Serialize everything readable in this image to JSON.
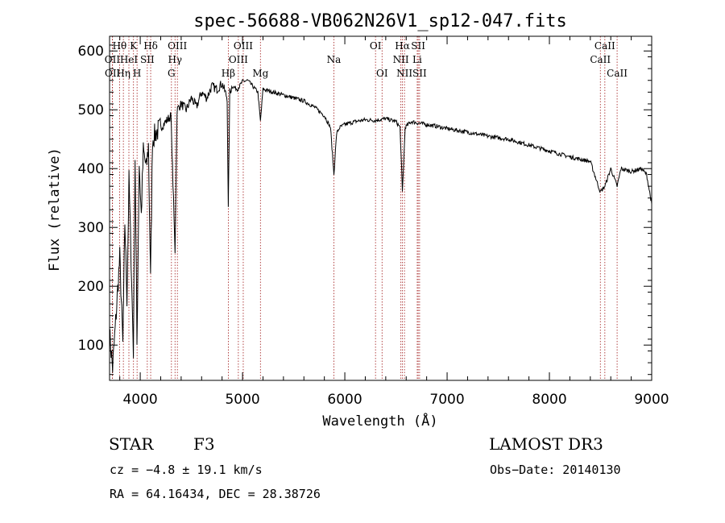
{
  "chart_data": {
    "type": "line",
    "title": "spec-56688-VB062N26V1_sp12-047.fits",
    "xlabel": "Wavelength (Å)",
    "ylabel": "Flux (relative)",
    "xlim": [
      3700,
      9000
    ],
    "ylim": [
      40,
      625
    ],
    "xticks": [
      4000,
      5000,
      6000,
      7000,
      8000,
      9000
    ],
    "yticks": [
      100,
      200,
      300,
      400,
      500,
      600
    ],
    "series": [
      {
        "name": "flux",
        "x": [
          3700,
          3730,
          3760,
          3800,
          3830,
          3850,
          3870,
          3890,
          3910,
          3933,
          3950,
          3968,
          3990,
          4010,
          4030,
          4060,
          4080,
          4101,
          4120,
          4150,
          4200,
          4250,
          4300,
          4340,
          4360,
          4400,
          4450,
          4500,
          4550,
          4600,
          4650,
          4700,
          4750,
          4800,
          4850,
          4861,
          4875,
          4900,
          4950,
          5000,
          5050,
          5100,
          5150,
          5175,
          5200,
          5300,
          5400,
          5500,
          5600,
          5700,
          5800,
          5860,
          5893,
          5920,
          5950,
          6000,
          6100,
          6200,
          6300,
          6400,
          6500,
          6540,
          6563,
          6590,
          6650,
          6700,
          6800,
          6900,
          7000,
          7200,
          7400,
          7600,
          7800,
          8000,
          8200,
          8400,
          8498,
          8542,
          8600,
          8662,
          8700,
          8800,
          8900,
          8950,
          9000
        ],
        "values": [
          120,
          60,
          140,
          250,
          100,
          310,
          180,
          380,
          250,
          90,
          420,
          100,
          410,
          320,
          430,
          400,
          440,
          210,
          450,
          460,
          470,
          480,
          490,
          260,
          500,
          510,
          500,
          520,
          505,
          530,
          520,
          540,
          535,
          545,
          520,
          330,
          530,
          540,
          535,
          548,
          550,
          540,
          530,
          480,
          535,
          530,
          525,
          520,
          515,
          505,
          490,
          470,
          390,
          460,
          470,
          475,
          480,
          483,
          482,
          485,
          480,
          470,
          360,
          470,
          480,
          478,
          475,
          472,
          468,
          462,
          455,
          450,
          440,
          430,
          420,
          412,
          360,
          370,
          400,
          370,
          400,
          395,
          400,
          390,
          340
        ]
      }
    ],
    "lines": [
      {
        "label": "Hθ",
        "x": 3798,
        "row": 1
      },
      {
        "label": "OII",
        "x": 3727,
        "row": 2
      },
      {
        "label": "OII",
        "x": 3729,
        "row": 3
      },
      {
        "label": "K",
        "x": 3934,
        "row": 1
      },
      {
        "label": "HeI",
        "x": 3889,
        "row": 2
      },
      {
        "label": "Hη",
        "x": 3835,
        "row": 3
      },
      {
        "label": "H",
        "x": 3969,
        "row": 3
      },
      {
        "label": "SII",
        "x": 4069,
        "row": 2
      },
      {
        "label": "Hδ",
        "x": 4102,
        "row": 1
      },
      {
        "label": "OIII",
        "x": 4363,
        "row": 1
      },
      {
        "label": "Hγ",
        "x": 4340,
        "row": 2
      },
      {
        "label": "G",
        "x": 4305,
        "row": 3
      },
      {
        "label": "Hβ",
        "x": 4861,
        "row": 3
      },
      {
        "label": "OIII",
        "x": 5007,
        "row": 1
      },
      {
        "label": "OIII",
        "x": 4959,
        "row": 2
      },
      {
        "label": "Mg",
        "x": 5175,
        "row": 3
      },
      {
        "label": "Na",
        "x": 5893,
        "row": 2
      },
      {
        "label": "OI",
        "x": 6300,
        "row": 1
      },
      {
        "label": "OI",
        "x": 6364,
        "row": 3
      },
      {
        "label": "Hα",
        "x": 6563,
        "row": 1
      },
      {
        "label": "NII",
        "x": 6548,
        "row": 2
      },
      {
        "label": "NII",
        "x": 6583,
        "row": 3
      },
      {
        "label": "SII",
        "x": 6717,
        "row": 1
      },
      {
        "label": "Li",
        "x": 6708,
        "row": 2
      },
      {
        "label": "SII",
        "x": 6731,
        "row": 3
      },
      {
        "label": "CaII",
        "x": 8542,
        "row": 1
      },
      {
        "label": "CaII",
        "x": 8498,
        "row": 2
      },
      {
        "label": "CaII",
        "x": 8662,
        "row": 3
      }
    ]
  },
  "info": {
    "class_label": "STAR",
    "subclass": "F3",
    "survey": "LAMOST DR3",
    "cz": "cz = −4.8 ± 19.1 km/s",
    "obs_date": "Obs−Date: 20140130",
    "coords": "RA =  64.16434, DEC =  28.38726"
  },
  "colors": {
    "spectrum": "#000000",
    "line_markers": "#a01818",
    "axes": "#000000"
  }
}
